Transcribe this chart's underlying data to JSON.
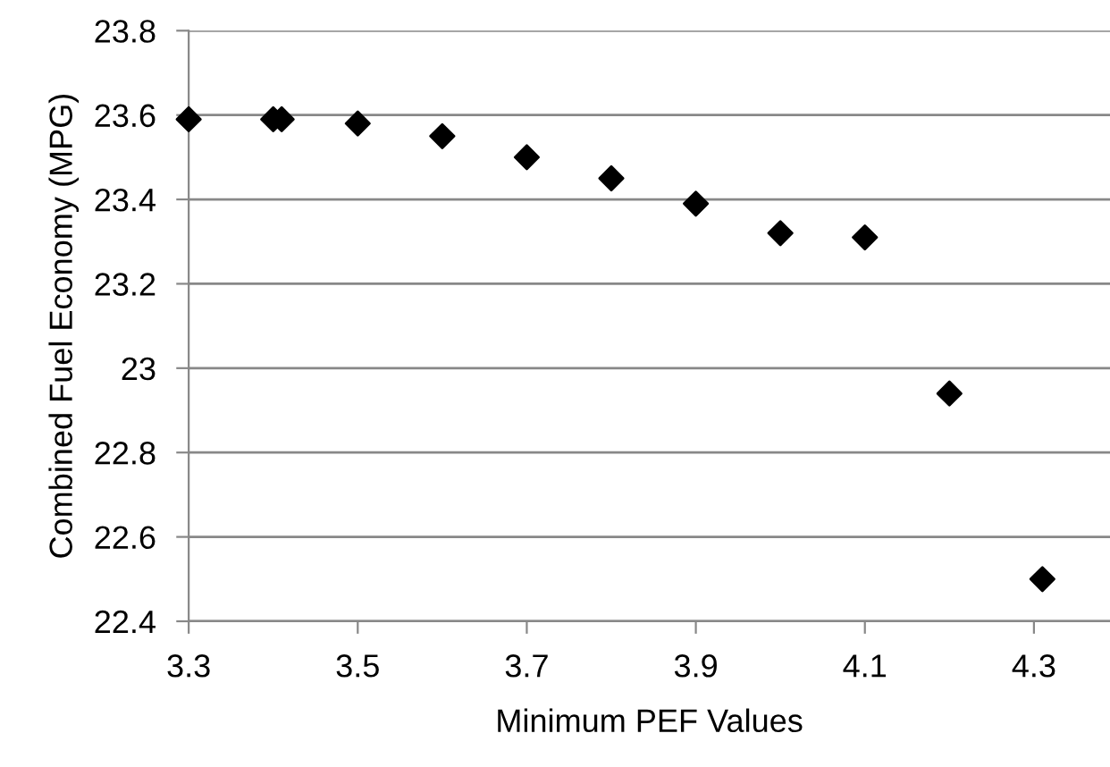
{
  "chart_data": {
    "type": "scatter",
    "xlabel": "Minimum PEF Values",
    "ylabel": "Combined Fuel Economy (MPG)",
    "x": [
      3.3,
      3.4,
      3.41,
      3.5,
      3.6,
      3.7,
      3.8,
      3.9,
      4.0,
      4.1,
      4.2,
      4.31
    ],
    "values": [
      23.59,
      23.59,
      23.59,
      23.58,
      23.55,
      23.5,
      23.45,
      23.39,
      23.32,
      23.31,
      22.94,
      22.5
    ],
    "color": "#000000",
    "marker": "diamond",
    "xlim": [
      3.3,
      4.39
    ],
    "xticks": [
      3.3,
      3.5,
      3.7,
      3.9,
      4.1,
      4.3
    ],
    "ylim": [
      22.4,
      23.8
    ],
    "yticks": [
      22.4,
      22.6,
      22.8,
      23,
      23.2,
      23.4,
      23.6,
      23.8
    ],
    "grid": "y",
    "legend": false
  }
}
